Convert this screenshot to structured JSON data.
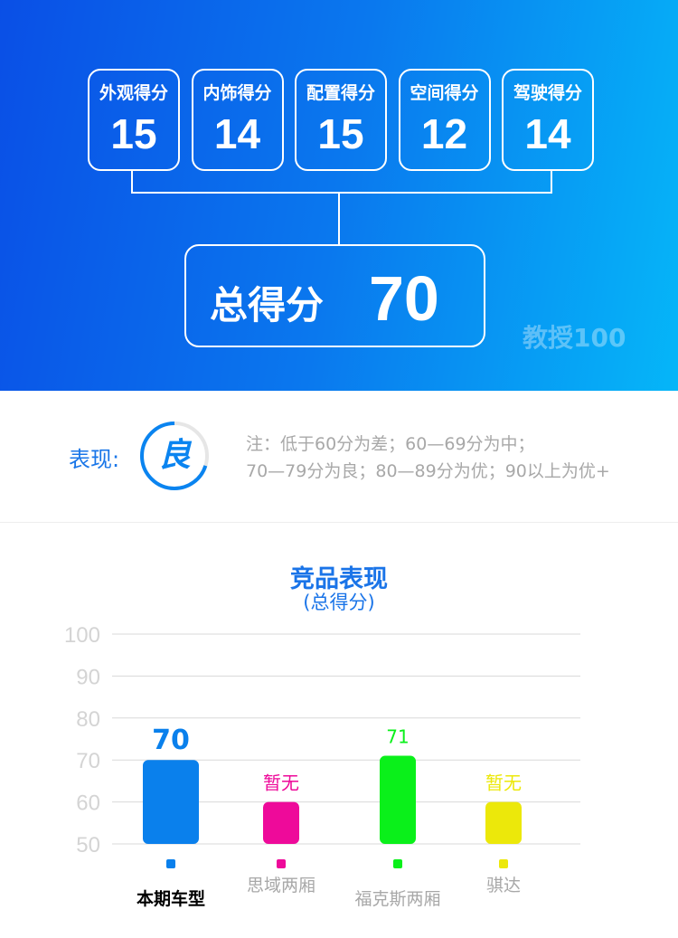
{
  "scores": [
    {
      "label": "外观得分",
      "value": "15"
    },
    {
      "label": "内饰得分",
      "value": "14"
    },
    {
      "label": "配置得分",
      "value": "15"
    },
    {
      "label": "空间得分",
      "value": "12"
    },
    {
      "label": "驾驶得分",
      "value": "14"
    }
  ],
  "total": {
    "label": "总得分",
    "value": "70"
  },
  "watermark": "教授100",
  "performance": {
    "label": "表现:",
    "grade": "良",
    "grade_fraction": 0.7,
    "note_line1": "注：低于60分为差；60—69分为中；",
    "note_line2": "70—79分为良；80—89分为优；90以上为优+"
  },
  "chart_data": {
    "type": "bar",
    "title": "竞品表现",
    "subtitle": "(总得分)",
    "ylim": [
      50,
      100
    ],
    "yticks": [
      50,
      60,
      70,
      80,
      90,
      100
    ],
    "grid": true,
    "categories": [
      "本期车型",
      "思域两厢",
      "福克斯两厢",
      "骐达"
    ],
    "values": [
      70,
      null,
      71,
      null
    ],
    "labels": [
      "70",
      "暂无",
      "71",
      "暂无"
    ],
    "colors": [
      "#0a80ec",
      "#ee0a9a",
      "#0af01a",
      "#ece80a"
    ]
  }
}
